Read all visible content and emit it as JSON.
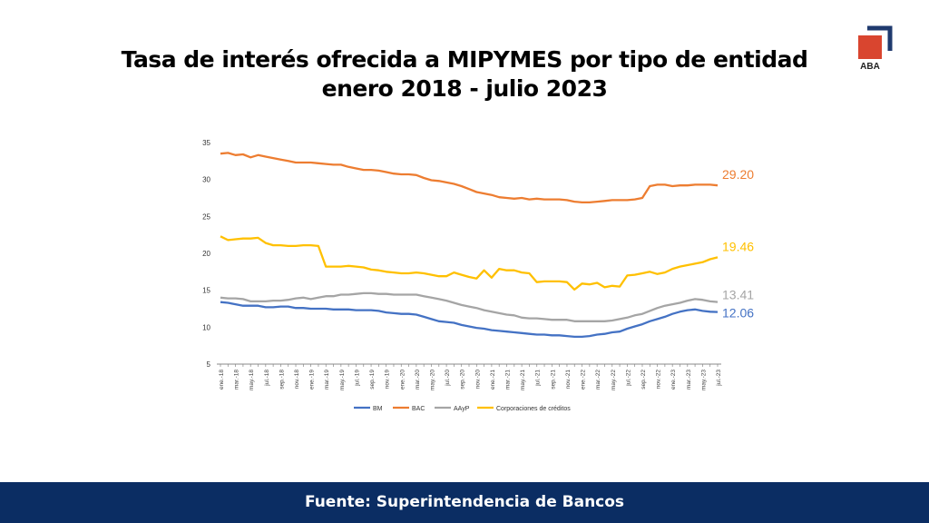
{
  "title_line1": "Tasa de interés ofrecida a MIPYMES por tipo de entidad",
  "title_line2": "enero 2018 - julio 2023",
  "logo_text": "ABA",
  "footer": "Fuente:  Superintendencia de Bancos",
  "chart_data": {
    "type": "line",
    "ylim": [
      5,
      35
    ],
    "yticks": [
      5,
      10,
      15,
      20,
      25,
      30,
      35
    ],
    "grid": false,
    "legend": "bottom",
    "xtick_labels": [
      "ene.-18",
      "mar.-18",
      "may.-18",
      "jul.-18",
      "sep.-18",
      "nov.-18",
      "ene.-19",
      "mar.-19",
      "may.-19",
      "jul.-19",
      "sep.-19",
      "nov.-19",
      "ene.-20",
      "mar.-20",
      "may.-20",
      "jul.-20",
      "sep.-20",
      "nov.-20",
      "ene.-21",
      "mar.-21",
      "may.-21",
      "jul.-21",
      "sep.-21",
      "nov.-21",
      "ene.-22",
      "mar.-22",
      "may.-22",
      "jul.-22",
      "sep.-22",
      "nov.-22",
      "ene.-23",
      "mar.-23",
      "may.-23",
      "jul.-23"
    ],
    "x_range": [
      "ene.-18",
      "jul.-23"
    ],
    "series": [
      {
        "name": "BM",
        "color": "#4472c4",
        "end_label": "12.06",
        "values": [
          13.4,
          13.3,
          13.1,
          12.9,
          12.9,
          12.9,
          12.7,
          12.7,
          12.8,
          12.8,
          12.6,
          12.6,
          12.5,
          12.5,
          12.5,
          12.4,
          12.4,
          12.4,
          12.3,
          12.3,
          12.3,
          12.2,
          12.0,
          11.9,
          11.8,
          11.8,
          11.7,
          11.4,
          11.1,
          10.8,
          10.7,
          10.6,
          10.3,
          10.1,
          9.9,
          9.8,
          9.6,
          9.5,
          9.4,
          9.3,
          9.2,
          9.1,
          9.0,
          9.0,
          8.9,
          8.9,
          8.8,
          8.7,
          8.7,
          8.8,
          9.0,
          9.1,
          9.3,
          9.4,
          9.8,
          10.1,
          10.4,
          10.8,
          11.1,
          11.4,
          11.8,
          12.1,
          12.3,
          12.4,
          12.2,
          12.1,
          12.06
        ]
      },
      {
        "name": "BAC",
        "color": "#ed7d31",
        "end_label": "29.20",
        "values": [
          33.5,
          33.6,
          33.3,
          33.4,
          33.0,
          33.3,
          33.1,
          32.9,
          32.7,
          32.5,
          32.3,
          32.3,
          32.3,
          32.2,
          32.1,
          32.0,
          32.0,
          31.7,
          31.5,
          31.3,
          31.3,
          31.2,
          31.0,
          30.8,
          30.7,
          30.7,
          30.6,
          30.2,
          29.9,
          29.8,
          29.6,
          29.4,
          29.1,
          28.7,
          28.3,
          28.1,
          27.9,
          27.6,
          27.5,
          27.4,
          27.5,
          27.3,
          27.4,
          27.3,
          27.3,
          27.3,
          27.2,
          27.0,
          26.9,
          26.9,
          27.0,
          27.1,
          27.2,
          27.2,
          27.2,
          27.3,
          27.5,
          29.1,
          29.3,
          29.3,
          29.1,
          29.2,
          29.2,
          29.3,
          29.3,
          29.3,
          29.2
        ]
      },
      {
        "name": "AAyP",
        "color": "#a5a5a5",
        "end_label": "13.41",
        "values": [
          14.0,
          13.9,
          13.9,
          13.8,
          13.5,
          13.5,
          13.5,
          13.6,
          13.6,
          13.7,
          13.9,
          14.0,
          13.8,
          14.0,
          14.2,
          14.2,
          14.4,
          14.4,
          14.5,
          14.6,
          14.6,
          14.5,
          14.5,
          14.4,
          14.4,
          14.4,
          14.4,
          14.2,
          14.0,
          13.8,
          13.6,
          13.3,
          13.0,
          12.8,
          12.6,
          12.3,
          12.1,
          11.9,
          11.7,
          11.6,
          11.3,
          11.2,
          11.2,
          11.1,
          11.0,
          11.0,
          11.0,
          10.8,
          10.8,
          10.8,
          10.8,
          10.8,
          10.9,
          11.1,
          11.3,
          11.6,
          11.8,
          12.2,
          12.6,
          12.9,
          13.1,
          13.3,
          13.6,
          13.8,
          13.7,
          13.5,
          13.41
        ]
      },
      {
        "name": "Corporaciones de créditos",
        "color": "#ffc000",
        "end_label": "19.46",
        "values": [
          22.3,
          21.8,
          21.9,
          22.0,
          22.0,
          22.1,
          21.4,
          21.1,
          21.1,
          21.0,
          21.0,
          21.1,
          21.1,
          21.0,
          18.2,
          18.2,
          18.2,
          18.3,
          18.2,
          18.1,
          17.8,
          17.7,
          17.5,
          17.4,
          17.3,
          17.3,
          17.4,
          17.3,
          17.1,
          16.9,
          16.9,
          17.4,
          17.1,
          16.8,
          16.6,
          17.7,
          16.7,
          17.9,
          17.7,
          17.7,
          17.4,
          17.3,
          16.1,
          16.2,
          16.2,
          16.2,
          16.1,
          15.1,
          15.9,
          15.8,
          16.0,
          15.4,
          15.6,
          15.5,
          17.0,
          17.1,
          17.3,
          17.5,
          17.2,
          17.4,
          17.9,
          18.2,
          18.4,
          18.6,
          18.8,
          19.2,
          19.46
        ]
      }
    ]
  }
}
